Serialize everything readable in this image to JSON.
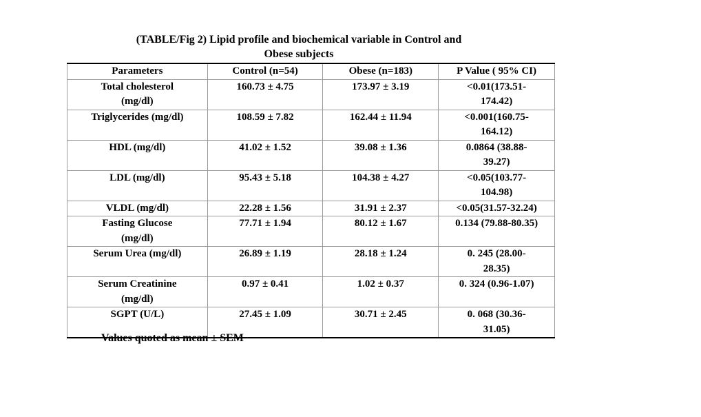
{
  "title": "(TABLE/Fig  2) Lipid profile and biochemical variable in Control and\nObese subjects",
  "table": {
    "headers": [
      "Parameters",
      "Control (n=54)",
      "Obese (n=183)",
      "P Value ( 95% CI)"
    ],
    "rows": [
      [
        "Total cholesterol\n(mg/dl)",
        "160.73 ± 4.75",
        "173.97 ± 3.19",
        "<0.01(173.51-\n174.42)"
      ],
      [
        "Triglycerides (mg/dl)",
        "108.59 ± 7.82",
        "162.44 ± 11.94",
        "<0.001(160.75-\n164.12)"
      ],
      [
        "HDL (mg/dl)",
        "41.02 ± 1.52",
        "39.08 ± 1.36",
        "0.0864 (38.88-\n39.27)"
      ],
      [
        "LDL (mg/dl)",
        "95.43 ± 5.18",
        "104.38 ± 4.27",
        "<0.05(103.77-\n104.98)"
      ],
      [
        "VLDL (mg/dl)",
        "22.28 ± 1.56",
        "31.91 ± 2.37",
        "<0.05(31.57-32.24)"
      ],
      [
        "Fasting Glucose\n(mg/dl)",
        "77.71 ± 1.94",
        "80.12 ± 1.67",
        "0.134 (79.88-80.35)"
      ],
      [
        "Serum Urea (mg/dl)",
        "26.89 ± 1.19",
        "28.18 ± 1.24",
        "0. 245 (28.00-\n28.35)"
      ],
      [
        "Serum Creatinine\n(mg/dl)",
        "0.97 ± 0.41",
        "1.02  ± 0.37",
        "0. 324 (0.96-1.07)"
      ],
      [
        "SGPT (U/L)",
        "27.45 ± 1.09",
        "30.71 ± 2.45",
        "0. 068 (30.36-\n31.05)"
      ]
    ]
  },
  "footnote": "Values quoted as mean ± SEM"
}
